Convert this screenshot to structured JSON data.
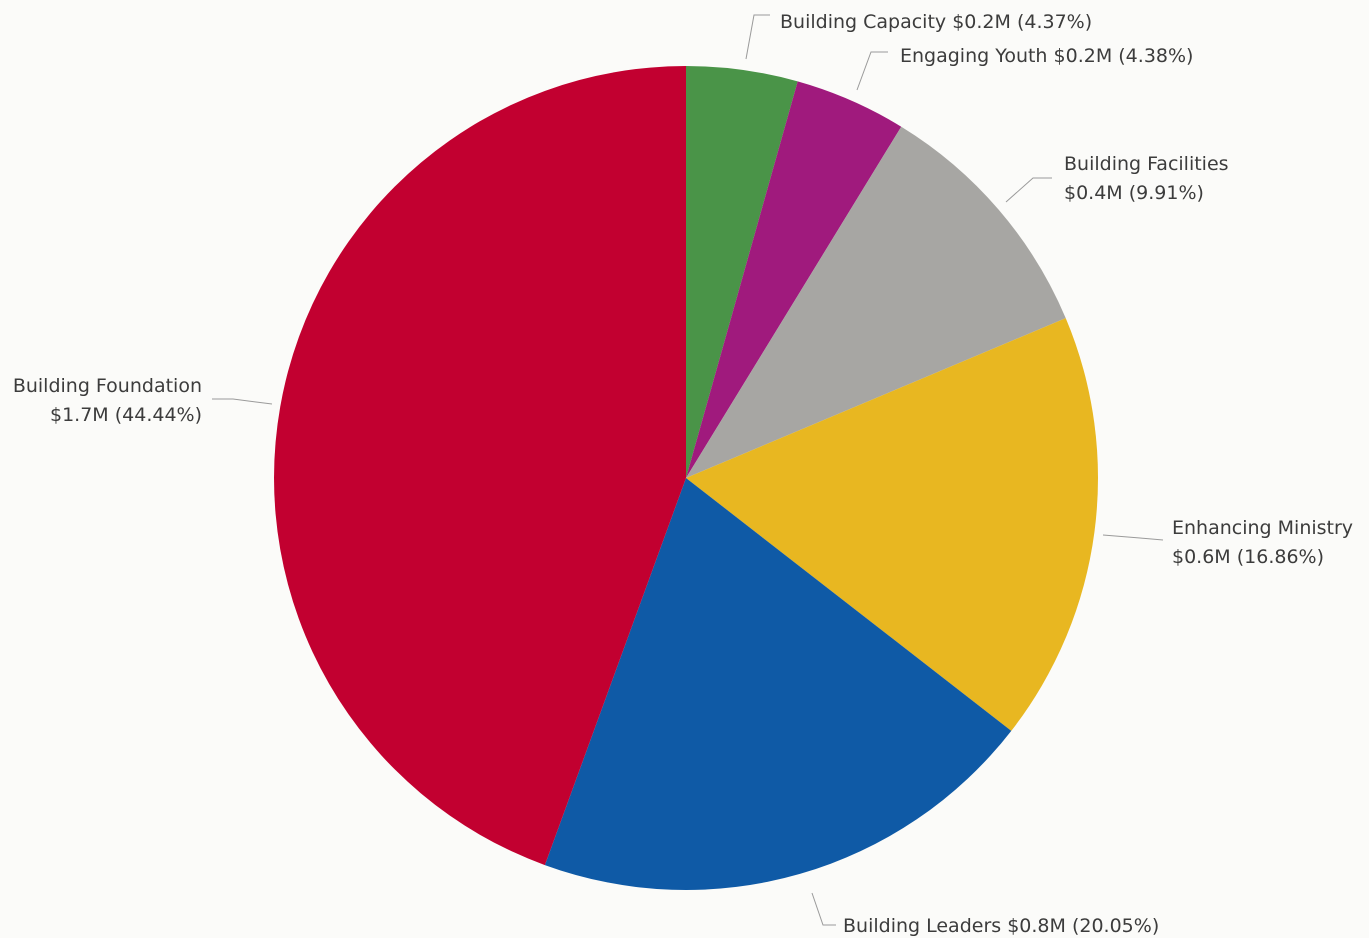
{
  "chart_data": {
    "type": "pie",
    "title": "",
    "start_angle_deg": 0,
    "direction": "clockwise",
    "legend": "none",
    "slices": [
      {
        "label": "Building Capacity",
        "value_text": "$0.2M",
        "percent_text": "(4.37%)",
        "percent": 4.37,
        "color": "#4a9448"
      },
      {
        "label": "Engaging Youth",
        "value_text": "$0.2M",
        "percent_text": "(4.38%)",
        "percent": 4.38,
        "color": "#a01a7d"
      },
      {
        "label": "Building Facilities",
        "value_text": "$0.4M",
        "percent_text": "(9.91%)",
        "percent": 9.91,
        "color": "#a7a6a3"
      },
      {
        "label": "Enhancing Ministry",
        "value_text": "$0.6M",
        "percent_text": "(16.86%)",
        "percent": 16.86,
        "color": "#e8b721"
      },
      {
        "label": "Building Leaders",
        "value_text": "$0.8M",
        "percent_text": "(20.05%)",
        "percent": 20.05,
        "color": "#0f5aa6"
      },
      {
        "label": "Building Foundation",
        "value_text": "$1.7M",
        "percent_text": "(44.44%)",
        "percent": 44.44,
        "color": "#c20030"
      }
    ]
  }
}
